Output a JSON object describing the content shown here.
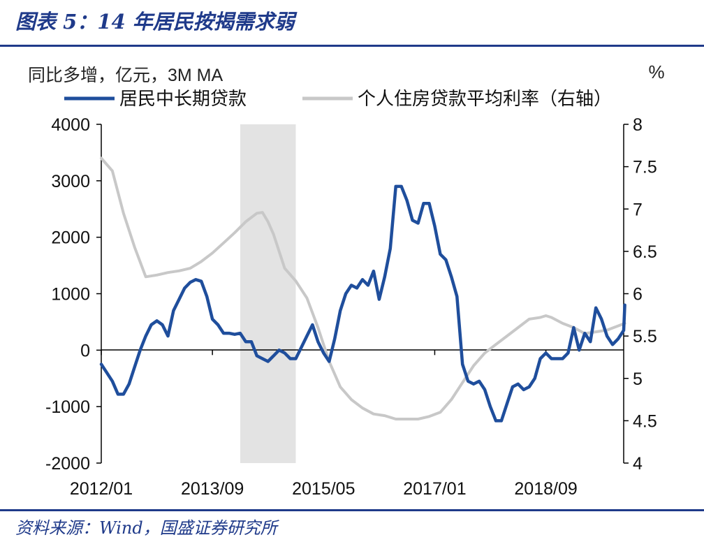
{
  "figure": {
    "title": "图表 5：14 年居民按揭需求弱",
    "source": "资料来源：Wind，国盛证券研究所"
  },
  "chart_data": {
    "type": "line",
    "left_axis_label": "同比多增，亿元，3M MA",
    "right_axis_label": "%",
    "left_ylim": [
      -2000,
      4000
    ],
    "left_yticks": [
      "4000",
      "3000",
      "2000",
      "1000",
      "0",
      "-1000",
      "-2000"
    ],
    "right_ylim": [
      4,
      8
    ],
    "right_yticks": [
      "8",
      "7.5",
      "7",
      "6.5",
      "6",
      "5.5",
      "5",
      "4.5",
      "4"
    ],
    "xlim": [
      0,
      94
    ],
    "x_ticks": [
      {
        "label": "2012/01",
        "x": 0
      },
      {
        "label": "2013/09",
        "x": 20
      },
      {
        "label": "2015/05",
        "x": 40
      },
      {
        "label": "2017/01",
        "x": 60
      },
      {
        "label": "2018/09",
        "x": 80
      }
    ],
    "shaded_region": [
      25,
      35
    ],
    "legend": [
      "居民中长期贷款",
      "个人住房贷款平均利率（右轴）"
    ],
    "series": [
      {
        "name": "居民中长期贷款",
        "axis": "left",
        "color": "#1f4e9c",
        "points": [
          [
            0,
            -250
          ],
          [
            1,
            -400
          ],
          [
            2,
            -550
          ],
          [
            3,
            -780
          ],
          [
            4,
            -780
          ],
          [
            5,
            -600
          ],
          [
            6,
            -300
          ],
          [
            7,
            0
          ],
          [
            8,
            250
          ],
          [
            9,
            450
          ],
          [
            10,
            520
          ],
          [
            11,
            450
          ],
          [
            12,
            250
          ],
          [
            13,
            700
          ],
          [
            14,
            900
          ],
          [
            15,
            1100
          ],
          [
            16,
            1200
          ],
          [
            17,
            1250
          ],
          [
            18,
            1220
          ],
          [
            19,
            950
          ],
          [
            20,
            550
          ],
          [
            21,
            450
          ],
          [
            22,
            300
          ],
          [
            23,
            300
          ],
          [
            24,
            280
          ],
          [
            25,
            300
          ],
          [
            26,
            150
          ],
          [
            27,
            150
          ],
          [
            28,
            -100
          ],
          [
            29,
            -150
          ],
          [
            30,
            -200
          ],
          [
            31,
            -100
          ],
          [
            32,
            0
          ],
          [
            33,
            -50
          ],
          [
            34,
            -150
          ],
          [
            35,
            -150
          ],
          [
            36,
            50
          ],
          [
            37,
            250
          ],
          [
            38,
            450
          ],
          [
            39,
            150
          ],
          [
            40,
            -50
          ],
          [
            41,
            -200
          ],
          [
            42,
            200
          ],
          [
            43,
            700
          ],
          [
            44,
            1000
          ],
          [
            45,
            1150
          ],
          [
            46,
            1100
          ],
          [
            47,
            1250
          ],
          [
            48,
            1150
          ],
          [
            49,
            1400
          ],
          [
            50,
            900
          ],
          [
            51,
            1300
          ],
          [
            52,
            1800
          ],
          [
            53,
            2900
          ],
          [
            54,
            2900
          ],
          [
            55,
            2650
          ],
          [
            56,
            2300
          ],
          [
            57,
            2250
          ],
          [
            58,
            2600
          ],
          [
            59,
            2600
          ],
          [
            60,
            2200
          ],
          [
            61,
            1700
          ],
          [
            62,
            1600
          ],
          [
            63,
            1300
          ],
          [
            64,
            950
          ],
          [
            65,
            -250
          ],
          [
            66,
            -550
          ],
          [
            67,
            -600
          ],
          [
            68,
            -550
          ],
          [
            69,
            -700
          ],
          [
            70,
            -1000
          ],
          [
            71,
            -1250
          ],
          [
            72,
            -1250
          ],
          [
            73,
            -950
          ],
          [
            74,
            -650
          ],
          [
            75,
            -600
          ],
          [
            76,
            -700
          ],
          [
            77,
            -650
          ],
          [
            78,
            -500
          ],
          [
            79,
            -150
          ],
          [
            80,
            -50
          ],
          [
            81,
            -150
          ],
          [
            82,
            -150
          ],
          [
            83,
            -150
          ],
          [
            84,
            -50
          ],
          [
            85,
            400
          ],
          [
            86,
            0
          ],
          [
            87,
            300
          ],
          [
            88,
            150
          ],
          [
            89,
            750
          ],
          [
            90,
            550
          ],
          [
            91,
            250
          ],
          [
            92,
            100
          ],
          [
            93,
            200
          ],
          [
            94,
            350
          ],
          [
            95,
            800
          ]
        ]
      },
      {
        "name": "个人住房贷款平均利率（右轴）",
        "axis": "right",
        "color": "#c8c8c8",
        "points": [
          [
            0,
            7.6
          ],
          [
            2,
            7.45
          ],
          [
            4,
            6.95
          ],
          [
            6,
            6.55
          ],
          [
            8,
            6.2
          ],
          [
            10,
            6.22
          ],
          [
            12,
            6.25
          ],
          [
            14,
            6.27
          ],
          [
            16,
            6.3
          ],
          [
            18,
            6.38
          ],
          [
            20,
            6.48
          ],
          [
            22,
            6.6
          ],
          [
            24,
            6.72
          ],
          [
            26,
            6.85
          ],
          [
            28,
            6.95
          ],
          [
            29,
            6.96
          ],
          [
            30,
            6.85
          ],
          [
            31,
            6.7
          ],
          [
            33,
            6.3
          ],
          [
            35,
            6.15
          ],
          [
            37,
            5.95
          ],
          [
            39,
            5.6
          ],
          [
            40,
            5.4
          ],
          [
            41,
            5.2
          ],
          [
            43,
            4.9
          ],
          [
            45,
            4.75
          ],
          [
            47,
            4.65
          ],
          [
            49,
            4.58
          ],
          [
            51,
            4.56
          ],
          [
            53,
            4.52
          ],
          [
            55,
            4.52
          ],
          [
            57,
            4.52
          ],
          [
            59,
            4.55
          ],
          [
            61,
            4.6
          ],
          [
            63,
            4.75
          ],
          [
            65,
            4.95
          ],
          [
            67,
            5.15
          ],
          [
            69,
            5.3
          ],
          [
            71,
            5.4
          ],
          [
            73,
            5.5
          ],
          [
            75,
            5.6
          ],
          [
            77,
            5.7
          ],
          [
            79,
            5.72
          ],
          [
            80,
            5.74
          ],
          [
            81,
            5.72
          ],
          [
            83,
            5.65
          ],
          [
            85,
            5.6
          ],
          [
            87,
            5.53
          ],
          [
            89,
            5.55
          ],
          [
            91,
            5.57
          ],
          [
            93,
            5.62
          ],
          [
            95,
            5.65
          ]
        ]
      }
    ]
  }
}
